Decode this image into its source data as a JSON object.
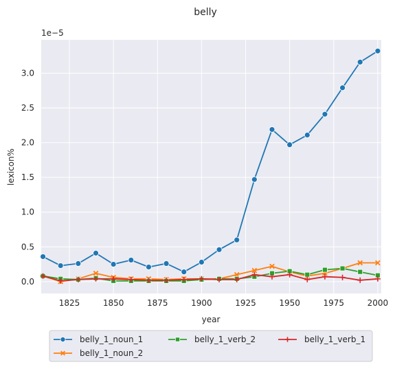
{
  "chart_data": {
    "type": "line",
    "title": "belly",
    "xlabel": "year",
    "ylabel": "lexicon%",
    "y_offset_label": "1e−5",
    "xlim": [
      1809,
      2002
    ],
    "ylim": [
      -0.17,
      3.48
    ],
    "x_ticks": [
      1825,
      1850,
      1875,
      1900,
      1925,
      1950,
      1975,
      2000
    ],
    "y_ticks": [
      0.0,
      0.5,
      1.0,
      1.5,
      2.0,
      2.5,
      3.0
    ],
    "y_tick_labels": [
      "0.0",
      "0.5",
      "1.0",
      "1.5",
      "2.0",
      "2.5",
      "3.0"
    ],
    "grid": true,
    "legend_position": "below",
    "x": [
      1810,
      1820,
      1830,
      1840,
      1850,
      1860,
      1870,
      1880,
      1890,
      1900,
      1910,
      1920,
      1930,
      1940,
      1950,
      1960,
      1970,
      1980,
      1990,
      2000
    ],
    "series": [
      {
        "name": "belly_1_noun_1",
        "color": "#1f77b4",
        "marker": "circle",
        "values": [
          0.36,
          0.23,
          0.26,
          0.41,
          0.25,
          0.31,
          0.21,
          0.26,
          0.14,
          0.28,
          0.46,
          0.6,
          1.47,
          2.19,
          1.97,
          2.11,
          2.41,
          2.79,
          3.16,
          3.32
        ]
      },
      {
        "name": "belly_1_noun_2",
        "color": "#ff7f0e",
        "marker": "x",
        "values": [
          0.08,
          0.0,
          0.04,
          0.12,
          0.06,
          0.04,
          0.04,
          0.03,
          0.04,
          0.04,
          0.04,
          0.1,
          0.16,
          0.22,
          0.14,
          0.08,
          0.12,
          0.19,
          0.27,
          0.27
        ]
      },
      {
        "name": "belly_1_verb_2",
        "color": "#2ca02c",
        "marker": "square",
        "values": [
          0.08,
          0.04,
          0.03,
          0.05,
          0.01,
          0.01,
          0.01,
          0.01,
          0.01,
          0.03,
          0.04,
          0.04,
          0.07,
          0.12,
          0.15,
          0.1,
          0.17,
          0.19,
          0.14,
          0.09
        ]
      },
      {
        "name": "belly_1_verb_1",
        "color": "#d62728",
        "marker": "plus",
        "values": [
          0.08,
          0.01,
          0.03,
          0.04,
          0.04,
          0.03,
          0.02,
          0.02,
          0.03,
          0.04,
          0.03,
          0.03,
          0.1,
          0.07,
          0.1,
          0.03,
          0.07,
          0.06,
          0.02,
          0.04
        ]
      }
    ],
    "legend_order": [
      0,
      2,
      3,
      1
    ]
  }
}
